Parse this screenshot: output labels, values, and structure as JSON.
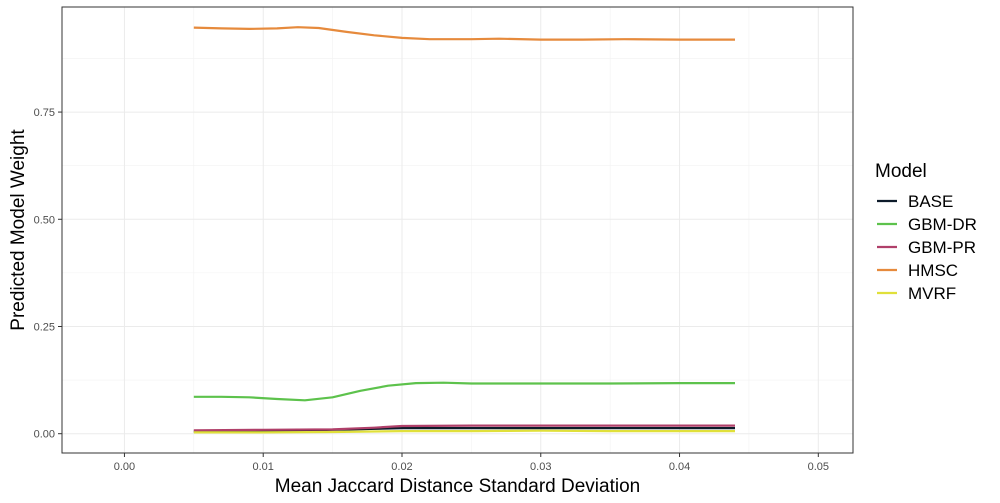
{
  "chart_data": {
    "type": "line",
    "title": "",
    "xlabel": "Mean Jaccard Distance Standard Deviation",
    "ylabel": "Predicted Model Weight",
    "xlim": [
      -0.0045,
      0.0525
    ],
    "ylim": [
      -0.045,
      0.995
    ],
    "x_ticks": [
      0.0,
      0.01,
      0.02,
      0.03,
      0.04,
      0.05
    ],
    "x_tick_labels": [
      "0.00",
      "0.01",
      "0.02",
      "0.03",
      "0.04",
      "0.05"
    ],
    "y_ticks": [
      0.0,
      0.25,
      0.5,
      0.75
    ],
    "y_tick_labels": [
      "0.00",
      "0.25",
      "0.50",
      "0.75"
    ],
    "grid": true,
    "legend": {
      "title": "Model",
      "placement": "right"
    },
    "series": [
      {
        "name": "BASE",
        "color": "#0d1b2a",
        "x": [
          0.005,
          0.01,
          0.015,
          0.02,
          0.025,
          0.03,
          0.035,
          0.04,
          0.044
        ],
        "y": [
          0.005,
          0.006,
          0.009,
          0.013,
          0.013,
          0.013,
          0.013,
          0.013,
          0.013
        ]
      },
      {
        "name": "GBM-DR",
        "color": "#5dc24c",
        "x": [
          0.005,
          0.007,
          0.009,
          0.011,
          0.013,
          0.015,
          0.017,
          0.019,
          0.021,
          0.023,
          0.025,
          0.03,
          0.035,
          0.04,
          0.044
        ],
        "y": [
          0.086,
          0.086,
          0.085,
          0.081,
          0.078,
          0.085,
          0.1,
          0.112,
          0.118,
          0.119,
          0.117,
          0.117,
          0.117,
          0.118,
          0.118
        ]
      },
      {
        "name": "GBM-PR",
        "color": "#b0406a",
        "x": [
          0.005,
          0.01,
          0.015,
          0.018,
          0.02,
          0.025,
          0.03,
          0.035,
          0.04,
          0.044
        ],
        "y": [
          0.008,
          0.009,
          0.01,
          0.014,
          0.018,
          0.019,
          0.019,
          0.019,
          0.019,
          0.019
        ]
      },
      {
        "name": "HMSC",
        "color": "#e68a3c",
        "x": [
          0.005,
          0.007,
          0.009,
          0.011,
          0.0125,
          0.014,
          0.016,
          0.018,
          0.02,
          0.022,
          0.025,
          0.027,
          0.03,
          0.033,
          0.036,
          0.04,
          0.044
        ],
        "y": [
          0.947,
          0.945,
          0.944,
          0.945,
          0.948,
          0.946,
          0.937,
          0.929,
          0.923,
          0.92,
          0.92,
          0.921,
          0.919,
          0.919,
          0.92,
          0.919,
          0.919
        ]
      },
      {
        "name": "MVRF",
        "color": "#e0e03a",
        "x": [
          0.005,
          0.01,
          0.015,
          0.02,
          0.025,
          0.03,
          0.035,
          0.04,
          0.044
        ],
        "y": [
          0.003,
          0.003,
          0.004,
          0.006,
          0.006,
          0.007,
          0.006,
          0.006,
          0.006
        ]
      }
    ]
  }
}
